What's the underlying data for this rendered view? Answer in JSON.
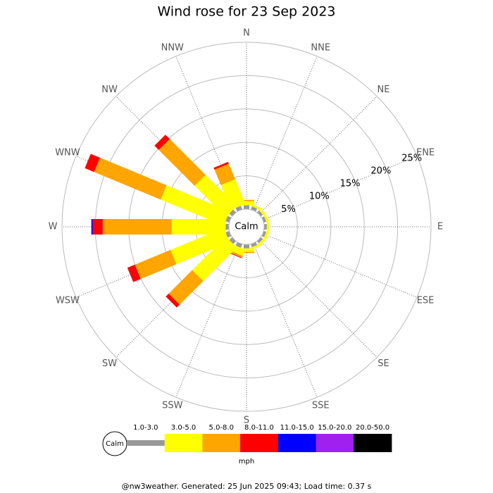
{
  "chart_data": {
    "type": "wind-rose",
    "title": "Wind rose for 23 Sep 2023",
    "categories": [
      "N",
      "NNE",
      "NE",
      "ENE",
      "E",
      "ESE",
      "SE",
      "SSE",
      "S",
      "SSW",
      "SW",
      "WSW",
      "W",
      "WNW",
      "NW",
      "NNW"
    ],
    "series": [
      {
        "name": "1.0-3.0",
        "color": "#999999",
        "values": [
          0.6,
          0.5,
          0.4,
          0.4,
          0.4,
          0.4,
          0.4,
          0.5,
          0.6,
          0.6,
          0.6,
          0.6,
          0.5,
          0.6,
          0.6,
          0.6
        ]
      },
      {
        "name": "3.0-5.0",
        "color": "#ffff00",
        "values": [
          0.6,
          0.3,
          0.2,
          0.3,
          0.3,
          0.3,
          0.3,
          0.3,
          0.5,
          1.0,
          7.1,
          8.6,
          8.1,
          10.2,
          6.6,
          4.0
        ]
      },
      {
        "name": "5.0-8.0",
        "color": "#ffa500",
        "values": [
          0.2,
          0,
          0,
          0,
          0,
          0,
          0,
          0,
          0.2,
          0.3,
          5.0,
          5.8,
          10.3,
          10.8,
          7.6,
          2.5
        ]
      },
      {
        "name": "8.0-11.0",
        "color": "#ff0000",
        "values": [
          0,
          0,
          0,
          0,
          0,
          0,
          0,
          0,
          0,
          0.1,
          0.6,
          1.2,
          1.5,
          1.5,
          0.9,
          0.3
        ]
      },
      {
        "name": "11.0-15.0",
        "color": "#0000ff",
        "values": [
          0,
          0,
          0,
          0,
          0,
          0,
          0,
          0,
          0,
          0,
          0,
          0,
          0.2,
          0,
          0,
          0
        ]
      },
      {
        "name": "15.0-20.0",
        "color": "#a020f0",
        "values": [
          0,
          0,
          0,
          0,
          0,
          0,
          0,
          0,
          0,
          0,
          0,
          0,
          0,
          0,
          0,
          0
        ]
      },
      {
        "name": "20.0-50.0",
        "color": "#000000",
        "values": [
          0,
          0,
          0,
          0,
          0,
          0,
          0,
          0,
          0,
          0,
          0,
          0,
          0,
          0,
          0,
          0
        ]
      }
    ],
    "rlim": [
      0,
      25
    ],
    "rticks": [
      {
        "value": 5,
        "label": "5%"
      },
      {
        "value": 10,
        "label": "10%"
      },
      {
        "value": 15,
        "label": "15%"
      },
      {
        "value": 20,
        "label": "20%"
      },
      {
        "value": 25,
        "label": "25%"
      }
    ],
    "calm_label": "Calm",
    "units": "mph",
    "footer": "@nw3weather. Generated: 25 Jun 2025 09:43; Load time: 0.37 s"
  }
}
